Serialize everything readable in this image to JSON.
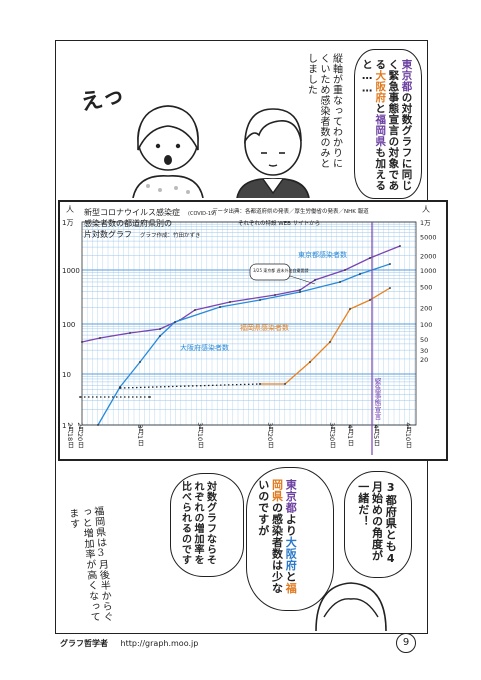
{
  "panel1": {
    "exclaim": "えっ",
    "speech_right": [
      "東京都",
      "の対数グラフに",
      "同じく緊急事態宣言の",
      "対象である",
      "大阪府",
      "と",
      "福岡県",
      "も加えると……"
    ],
    "speech_mid": "縦軸が重なってわかりにくいため感染者数のみとしました"
  },
  "chart": {
    "title_line1": "新型コロナウイルス感染症",
    "covid_label": "(COVID-19)",
    "title_line2": "感染者数の都道府県別の",
    "title_line3": "片対数グラフ",
    "author": "グラフ作成：竹田かずき",
    "source_line1": "データ出典：各都道府県の発表／厚生労働省の発表／NHK 報道",
    "source_line2": "それぞれの特設 WEB サイトから",
    "y_unit_left": "人",
    "y_unit_right": "人",
    "left_ticks": [
      "1万",
      "1000",
      "100",
      "10",
      "1"
    ],
    "right_ticks": [
      "1万",
      "5000",
      "2000",
      "1000",
      "500",
      "200",
      "100",
      "50",
      "30",
      "20"
    ],
    "x_ticks": [
      "2月18日",
      "2月20日",
      "3月1日",
      "3月10日",
      "3月20日",
      "3月30日",
      "4月1日",
      "4月5日",
      "4月10日"
    ],
    "series_tokyo": "東京都感染者数",
    "series_osaka": "大阪府感染者数",
    "series_fukuoka": "福岡県感染者数",
    "annotation": "3/25 東京都 週末外出自粛要請",
    "emergency": "緊急事態宣言",
    "colors": {
      "tokyo": "#7a45b0",
      "osaka": "#2a8ad8",
      "fukuoka": "#e8821e",
      "grid": "#9cc7ea"
    }
  },
  "panel3": {
    "bubble_right": "3都府県とも4月始めの角度が一緒だ！",
    "bubble_mid_parts": [
      "東京都",
      "より",
      "大阪府",
      "と",
      "福岡県",
      "の感染者数は少ないのですが"
    ],
    "bubble_left": "対数グラフならそれぞれの増加率を比べられるのです",
    "note": "福岡県は3月後半からぐっと増加率が高くなってます"
  },
  "footer": {
    "brand": "グラフ哲学者",
    "url": "http://graph.moo.jp",
    "page": "9"
  }
}
